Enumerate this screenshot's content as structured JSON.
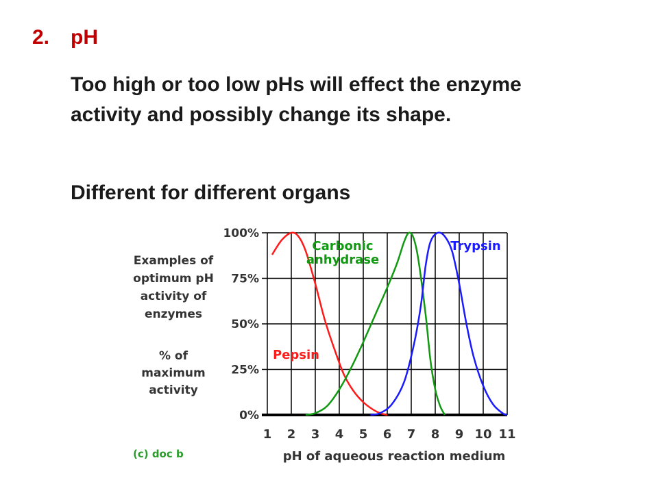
{
  "slide": {
    "heading_number": "2.",
    "heading_title": "pH",
    "paragraph_1": "Too high or too low pHs will effect the enzyme activity and possibly change its shape.",
    "paragraph_2": "Different for different organs"
  },
  "chart_data": {
    "type": "line",
    "side_caption": [
      "Examples of",
      "optimum pH",
      "activity of",
      "enzymes"
    ],
    "ylabel": [
      "% of",
      "maximum",
      "activity"
    ],
    "xlabel": "pH of aqueous reaction medium",
    "credit": "(c) doc b",
    "xlim": [
      1,
      11
    ],
    "ylim": [
      0,
      100
    ],
    "x_ticks": [
      "1",
      "2",
      "3",
      "4",
      "5",
      "6",
      "7",
      "8",
      "9",
      "10",
      "11"
    ],
    "y_ticks": [
      {
        "value": 0,
        "label": "0%"
      },
      {
        "value": 25,
        "label": "25%"
      },
      {
        "value": 50,
        "label": "50%"
      },
      {
        "value": 75,
        "label": "75%"
      },
      {
        "value": 100,
        "label": "100%"
      }
    ],
    "grid": true,
    "colors": {
      "pepsin": "#ff1a1a",
      "carbonic": "#119911",
      "trypsin": "#1a1aff",
      "axis": "#000000",
      "grid": "#000000",
      "labels": "#333333",
      "credit": "#2a9a2a"
    },
    "series": [
      {
        "name": "Pepsin",
        "color": "#ff1a1a",
        "points": [
          [
            1.2,
            88
          ],
          [
            1.6,
            96
          ],
          [
            2.0,
            100
          ],
          [
            2.3,
            98
          ],
          [
            2.6,
            90
          ],
          [
            3.0,
            72
          ],
          [
            3.4,
            52
          ],
          [
            3.8,
            36
          ],
          [
            4.2,
            22
          ],
          [
            4.6,
            13
          ],
          [
            5.0,
            7
          ],
          [
            5.4,
            3
          ],
          [
            5.7,
            1
          ],
          [
            6.0,
            0
          ]
        ]
      },
      {
        "name": "Carbonic anhydrase",
        "color": "#119911",
        "points": [
          [
            2.6,
            0
          ],
          [
            3.0,
            1
          ],
          [
            3.5,
            5
          ],
          [
            4.0,
            14
          ],
          [
            4.5,
            26
          ],
          [
            5.0,
            40
          ],
          [
            5.5,
            55
          ],
          [
            6.0,
            70
          ],
          [
            6.4,
            83
          ],
          [
            6.7,
            95
          ],
          [
            6.9,
            100
          ],
          [
            7.1,
            97
          ],
          [
            7.3,
            85
          ],
          [
            7.6,
            55
          ],
          [
            7.8,
            30
          ],
          [
            8.0,
            14
          ],
          [
            8.2,
            5
          ],
          [
            8.4,
            0
          ]
        ]
      },
      {
        "name": "Trypsin",
        "color": "#1a1aff",
        "points": [
          [
            5.3,
            0
          ],
          [
            5.7,
            1
          ],
          [
            6.2,
            6
          ],
          [
            6.7,
            18
          ],
          [
            7.1,
            38
          ],
          [
            7.4,
            60
          ],
          [
            7.6,
            82
          ],
          [
            7.8,
            95
          ],
          [
            8.1,
            100
          ],
          [
            8.4,
            98
          ],
          [
            8.7,
            90
          ],
          [
            9.0,
            72
          ],
          [
            9.3,
            50
          ],
          [
            9.6,
            32
          ],
          [
            10.0,
            16
          ],
          [
            10.4,
            6
          ],
          [
            10.8,
            1
          ],
          [
            11.0,
            0
          ]
        ]
      }
    ],
    "series_labels": [
      {
        "lines": [
          "Pepsin"
        ],
        "color": "#ff1a1a"
      },
      {
        "lines": [
          "Carbonic",
          "anhydrase"
        ],
        "color": "#119911"
      },
      {
        "lines": [
          "Trypsin"
        ],
        "color": "#1a1aff"
      }
    ]
  }
}
